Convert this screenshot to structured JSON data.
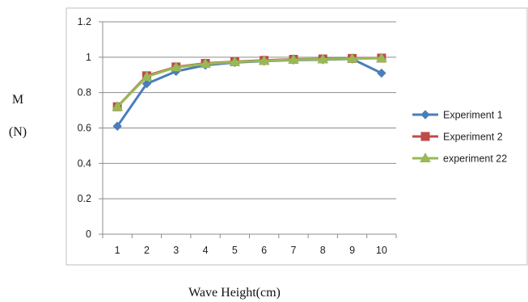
{
  "chart_data": {
    "type": "line",
    "x": [
      1,
      2,
      3,
      4,
      5,
      6,
      7,
      8,
      9,
      10
    ],
    "xlabel": "Wave Height(cm)",
    "ylabel_line1": "M",
    "ylabel_line2": "(N)",
    "ylim": [
      0,
      1.2
    ],
    "yticks": [
      "0",
      "0.2",
      "0.4",
      "0.6",
      "0.8",
      "1",
      "1.2"
    ],
    "xticks": [
      "1",
      "2",
      "3",
      "4",
      "5",
      "6",
      "7",
      "8",
      "9",
      "10"
    ],
    "grid": true,
    "legend_position": "right",
    "series": [
      {
        "name": "Experiment 1",
        "color": "#4a7ebb",
        "marker": "diamond",
        "values": [
          0.61,
          0.85,
          0.92,
          0.955,
          0.97,
          0.978,
          0.984,
          0.986,
          0.99,
          0.91
        ]
      },
      {
        "name": "Experiment 2",
        "color": "#be4b48",
        "marker": "square",
        "values": [
          0.72,
          0.895,
          0.945,
          0.965,
          0.975,
          0.982,
          0.988,
          0.99,
          0.993,
          0.995
        ]
      },
      {
        "name": "experiment 22",
        "color": "#98b954",
        "marker": "triangle",
        "values": [
          0.72,
          0.89,
          0.943,
          0.962,
          0.973,
          0.98,
          0.986,
          0.988,
          0.992,
          0.994
        ]
      }
    ]
  }
}
